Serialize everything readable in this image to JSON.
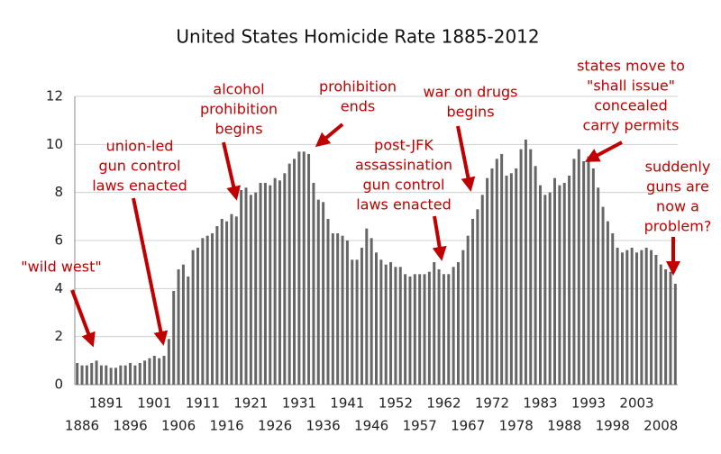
{
  "chart_data": {
    "type": "bar",
    "title": "United States Homicide Rate 1885-2012",
    "categories": [
      null,
      "1886",
      null,
      null,
      null,
      null,
      "1891",
      null,
      null,
      null,
      null,
      "1896",
      null,
      null,
      null,
      null,
      "1901",
      null,
      null,
      null,
      null,
      "1906",
      null,
      null,
      null,
      null,
      "1911",
      null,
      null,
      null,
      null,
      "1916",
      null,
      null,
      null,
      null,
      "1921",
      null,
      null,
      null,
      null,
      "1926",
      null,
      null,
      null,
      null,
      "1931",
      null,
      null,
      null,
      null,
      "1936",
      null,
      null,
      null,
      null,
      "1941",
      null,
      null,
      null,
      null,
      "1946",
      null,
      null,
      null,
      null,
      "1952",
      null,
      null,
      null,
      null,
      "1957",
      null,
      null,
      null,
      null,
      "1962",
      null,
      null,
      null,
      null,
      "1967",
      null,
      null,
      null,
      null,
      "1972",
      null,
      null,
      null,
      null,
      "1978",
      null,
      null,
      null,
      null,
      "1983",
      null,
      null,
      null,
      null,
      "1988",
      null,
      null,
      null,
      null,
      "1993",
      null,
      null,
      null,
      null,
      "1998",
      null,
      null,
      null,
      null,
      "2003",
      null,
      null,
      null,
      null,
      "2008",
      null,
      null,
      null
    ],
    "values": [
      0.9,
      0.8,
      0.8,
      0.9,
      1.0,
      0.8,
      0.8,
      0.7,
      0.7,
      0.8,
      0.8,
      0.9,
      0.8,
      0.9,
      1.0,
      1.1,
      1.2,
      1.1,
      1.2,
      1.9,
      3.9,
      4.8,
      5.0,
      4.5,
      5.6,
      5.7,
      6.1,
      6.2,
      6.3,
      6.6,
      6.9,
      6.8,
      7.1,
      7.0,
      8.1,
      8.2,
      7.9,
      8.0,
      8.4,
      8.4,
      8.3,
      8.6,
      8.5,
      8.8,
      9.2,
      9.4,
      9.7,
      9.7,
      9.6,
      8.4,
      7.7,
      7.6,
      6.9,
      6.3,
      6.3,
      6.2,
      6.0,
      5.2,
      5.2,
      5.7,
      6.5,
      6.1,
      5.5,
      5.2,
      5.0,
      5.1,
      4.9,
      4.9,
      4.6,
      4.5,
      4.6,
      4.6,
      4.6,
      4.7,
      5.1,
      4.8,
      4.6,
      4.6,
      4.9,
      5.1,
      5.6,
      6.2,
      6.9,
      7.3,
      7.9,
      8.6,
      9.0,
      9.4,
      9.6,
      8.7,
      8.8,
      9.0,
      9.8,
      10.2,
      9.8,
      9.1,
      8.3,
      7.9,
      8.0,
      8.6,
      8.3,
      8.4,
      8.7,
      9.4,
      9.8,
      9.3,
      9.5,
      9.0,
      8.2,
      7.4,
      6.8,
      6.3,
      5.7,
      5.5,
      5.6,
      5.7,
      5.5,
      5.6,
      5.7,
      5.6,
      5.4,
      5.0,
      4.8,
      4.7,
      4.2
    ],
    "color": "#666666",
    "ylim": [
      0,
      12
    ],
    "yticks": [
      0,
      2,
      4,
      6,
      8,
      10,
      12
    ],
    "grid": true,
    "annotations": [
      {
        "lines": [
          "\"wild west\""
        ]
      },
      {
        "lines": [
          "union-led",
          "gun control",
          "laws enacted"
        ]
      },
      {
        "lines": [
          "alcohol",
          "prohibition",
          "begins"
        ]
      },
      {
        "lines": [
          "prohibition",
          "ends"
        ]
      },
      {
        "lines": [
          "war on drugs",
          "begins"
        ]
      },
      {
        "lines": [
          "post-JFK",
          "assassination",
          "gun control",
          "laws enacted"
        ]
      },
      {
        "lines": [
          "states move to",
          "\"shall issue\"",
          "concealed",
          "carry permits"
        ]
      },
      {
        "lines": [
          "suddenly",
          "guns are",
          "now a",
          "problem?"
        ]
      }
    ]
  }
}
